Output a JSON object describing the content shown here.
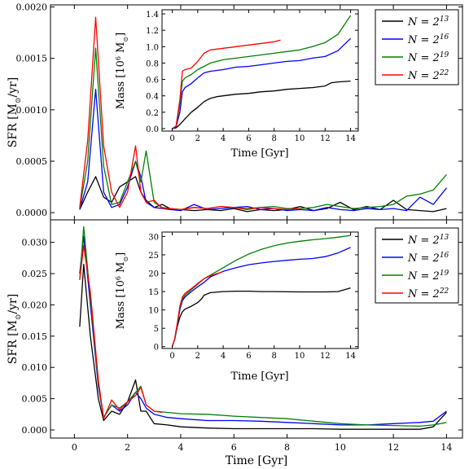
{
  "figure": {
    "x_label": "Time [Gyr]",
    "legend_labels": [
      "N = 2^13",
      "N = 2^16",
      "N = 2^19",
      "N = 2^22"
    ],
    "colors": [
      "#000000",
      "#0000ff",
      "#008000",
      "#ff0000"
    ]
  },
  "chart_data": [
    {
      "id": "top-main",
      "type": "line",
      "ylabel": "SFR [M_sun/yr]",
      "xlabel": "",
      "xlim": [
        -0.9,
        14.6
      ],
      "ylim": [
        -7e-05,
        0.00202
      ],
      "x_ticks": [
        0,
        2,
        4,
        6,
        8,
        10,
        12,
        14
      ],
      "y_ticks": [
        0.0,
        0.0005,
        0.001,
        0.0015,
        0.002
      ],
      "y_tick_labels": [
        "0.0000",
        "0.0005",
        "0.0010",
        "0.0015",
        "0.0020"
      ],
      "legend_position": "top-right",
      "series": [
        {
          "name": "N = 2^13",
          "color": "#000000",
          "x": [
            0.2,
            0.5,
            0.8,
            1.1,
            1.4,
            1.7,
            2.0,
            2.3,
            2.5,
            2.7,
            3.0,
            3.3,
            3.6,
            4.0,
            4.5,
            5.0,
            5.5,
            6.0,
            6.5,
            7.0,
            7.5,
            8.0,
            8.5,
            9.0,
            9.5,
            10.0,
            10.5,
            11.0,
            11.5,
            12.0,
            12.5,
            13.0,
            13.5,
            14.0
          ],
          "y": [
            3e-05,
            0.0002,
            0.00035,
            0.00015,
            0.0001,
            0.00025,
            0.0003,
            0.00035,
            0.0002,
            0.00012,
            5e-05,
            8e-05,
            4e-05,
            3e-05,
            2e-05,
            3e-05,
            2e-05,
            4e-05,
            1e-05,
            3e-05,
            2e-05,
            3e-05,
            6e-05,
            2e-05,
            4e-05,
            0.0001,
            3e-05,
            6e-05,
            3e-05,
            0.00012,
            3e-05,
            2e-05,
            1e-05,
            4e-05
          ]
        },
        {
          "name": "N = 2^16",
          "color": "#0000ff",
          "x": [
            0.2,
            0.5,
            0.8,
            1.1,
            1.4,
            1.7,
            2.0,
            2.3,
            2.5,
            2.7,
            3.0,
            3.3,
            3.6,
            4.0,
            4.5,
            5.0,
            5.5,
            6.0,
            6.5,
            7.0,
            7.5,
            8.0,
            8.5,
            9.0,
            9.5,
            10.0,
            10.5,
            11.0,
            11.5,
            12.0,
            12.5,
            13.0,
            13.5,
            14.0
          ],
          "y": [
            3e-05,
            0.0003,
            0.0012,
            0.0002,
            5e-05,
            8e-05,
            0.00025,
            0.0005,
            0.00035,
            0.0001,
            5e-05,
            4e-05,
            3e-05,
            2e-05,
            8e-05,
            3e-05,
            4e-05,
            5e-05,
            6e-05,
            3e-05,
            4e-05,
            2e-05,
            3e-05,
            2e-05,
            5e-05,
            3e-05,
            2e-05,
            4e-05,
            3e-05,
            4e-05,
            2e-05,
            0.00015,
            8e-05,
            0.00024
          ]
        },
        {
          "name": "N = 2^19",
          "color": "#008000",
          "x": [
            0.2,
            0.5,
            0.8,
            1.1,
            1.4,
            1.7,
            2.0,
            2.3,
            2.5,
            2.7,
            3.0,
            3.3,
            3.6,
            4.0,
            4.5,
            5.0,
            5.5,
            6.0,
            6.5,
            7.0,
            7.5,
            8.0,
            8.5,
            9.0,
            9.5,
            10.0,
            10.5,
            11.0,
            11.5,
            12.0,
            12.5,
            13.0,
            13.5,
            14.0
          ],
          "y": [
            4e-05,
            0.0005,
            0.0016,
            0.00045,
            8e-05,
            0.0001,
            0.0003,
            0.0005,
            0.0003,
            0.0006,
            0.0001,
            5e-05,
            4e-05,
            3e-05,
            5e-05,
            4e-05,
            6e-05,
            5e-05,
            4e-05,
            5e-05,
            6e-05,
            4e-05,
            4e-05,
            5e-05,
            8e-05,
            6e-05,
            4e-05,
            5e-05,
            6e-05,
            8e-05,
            0.00016,
            0.00018,
            0.00022,
            0.00037
          ]
        },
        {
          "name": "N = 2^22",
          "color": "#ff0000",
          "x": [
            0.2,
            0.5,
            0.8,
            1.1,
            1.4,
            1.7,
            2.0,
            2.3,
            2.5,
            2.7,
            3.0,
            3.3,
            3.6,
            4.0,
            4.5,
            5.0,
            5.5,
            6.0,
            6.5,
            7.0,
            7.5,
            8.0,
            8.5
          ],
          "y": [
            5e-05,
            0.0007,
            0.0019,
            0.00065,
            0.0002,
            5e-05,
            0.0002,
            0.00065,
            0.0002,
            0.0001,
            0.00012,
            4e-05,
            4e-05,
            3e-05,
            5e-05,
            4e-05,
            6e-05,
            5e-05,
            3e-05,
            5e-05,
            4e-05,
            3e-05,
            4e-05
          ]
        }
      ]
    },
    {
      "id": "top-inset",
      "type": "line",
      "ylabel": "Mass [10^6 M_sun]",
      "xlabel": "Time [Gyr]",
      "xlim": [
        -0.8,
        14.6
      ],
      "ylim": [
        -0.03,
        1.45
      ],
      "x_ticks": [
        0,
        2,
        4,
        6,
        8,
        10,
        12,
        14
      ],
      "y_ticks": [
        0.0,
        0.2,
        0.4,
        0.6,
        0.8,
        1.0,
        1.2,
        1.4
      ],
      "y_tick_labels": [
        "0.0",
        "0.2",
        "0.4",
        "0.6",
        "0.8",
        "1.0",
        "1.2",
        "1.4"
      ],
      "series": [
        {
          "name": "N = 2^13",
          "color": "#000000",
          "x": [
            0.0,
            0.3,
            0.6,
            1.0,
            1.5,
            2.0,
            2.5,
            3.0,
            3.5,
            4.0,
            5.0,
            6.0,
            7.0,
            8.0,
            9.0,
            10.0,
            11.0,
            12.0,
            12.5,
            13.0,
            14.0
          ],
          "y": [
            0.0,
            0.01,
            0.05,
            0.12,
            0.2,
            0.26,
            0.33,
            0.37,
            0.39,
            0.4,
            0.42,
            0.43,
            0.45,
            0.46,
            0.48,
            0.49,
            0.5,
            0.52,
            0.56,
            0.57,
            0.58
          ]
        },
        {
          "name": "N = 2^16",
          "color": "#0000ff",
          "x": [
            0.0,
            0.3,
            0.6,
            0.8,
            1.0,
            1.5,
            2.0,
            2.5,
            3.0,
            4.0,
            5.0,
            6.0,
            7.0,
            8.0,
            9.0,
            10.0,
            11.0,
            12.0,
            13.0,
            14.0
          ],
          "y": [
            0.0,
            0.02,
            0.2,
            0.45,
            0.5,
            0.55,
            0.62,
            0.68,
            0.7,
            0.72,
            0.75,
            0.76,
            0.78,
            0.8,
            0.82,
            0.83,
            0.86,
            0.88,
            0.95,
            1.1
          ]
        },
        {
          "name": "N = 2^19",
          "color": "#008000",
          "x": [
            0.0,
            0.3,
            0.6,
            0.8,
            1.0,
            1.5,
            2.0,
            2.5,
            3.0,
            4.0,
            5.0,
            6.0,
            7.0,
            8.0,
            9.0,
            10.0,
            11.0,
            12.0,
            13.0,
            14.0
          ],
          "y": [
            0.0,
            0.03,
            0.3,
            0.58,
            0.62,
            0.66,
            0.72,
            0.76,
            0.8,
            0.84,
            0.86,
            0.88,
            0.9,
            0.92,
            0.94,
            0.96,
            1.0,
            1.05,
            1.15,
            1.38
          ]
        },
        {
          "name": "N = 2^22",
          "color": "#ff0000",
          "x": [
            0.0,
            0.3,
            0.6,
            0.8,
            1.0,
            1.5,
            2.0,
            2.5,
            3.0,
            4.0,
            5.0,
            6.0,
            7.0,
            8.0,
            8.5
          ],
          "y": [
            0.0,
            0.03,
            0.35,
            0.7,
            0.72,
            0.74,
            0.82,
            0.92,
            0.96,
            0.98,
            1.0,
            1.02,
            1.04,
            1.06,
            1.08
          ]
        }
      ]
    },
    {
      "id": "bottom-main",
      "type": "line",
      "ylabel": "SFR [M_sun/yr]",
      "xlabel": "Time [Gyr]",
      "xlim": [
        -0.9,
        14.6
      ],
      "ylim": [
        -0.0013,
        0.0336
      ],
      "x_ticks": [
        0,
        2,
        4,
        6,
        8,
        10,
        12,
        14
      ],
      "y_ticks": [
        0.0,
        0.005,
        0.01,
        0.015,
        0.02,
        0.025,
        0.03
      ],
      "y_tick_labels": [
        "0.000",
        "0.005",
        "0.010",
        "0.015",
        "0.020",
        "0.025",
        "0.030"
      ],
      "legend_position": "top-right",
      "series": [
        {
          "name": "N = 2^13",
          "color": "#000000",
          "x": [
            0.2,
            0.35,
            0.6,
            0.9,
            1.1,
            1.4,
            1.7,
            2.0,
            2.3,
            2.5,
            2.7,
            3.0,
            3.5,
            4.0,
            5.0,
            6.0,
            7.0,
            8.0,
            9.0,
            10.0,
            11.0,
            12.0,
            13.0,
            13.5,
            14.0
          ],
          "y": [
            0.0165,
            0.0265,
            0.015,
            0.005,
            0.0015,
            0.003,
            0.0025,
            0.0045,
            0.008,
            0.003,
            0.003,
            0.001,
            0.0008,
            0.0005,
            0.0003,
            0.0002,
            0.0002,
            0.0002,
            0.0002,
            0.0001,
            0.0001,
            0.0001,
            0.0001,
            0.0005,
            0.0028
          ]
        },
        {
          "name": "N = 2^16",
          "color": "#0000ff",
          "x": [
            0.2,
            0.35,
            0.6,
            0.9,
            1.1,
            1.4,
            1.7,
            2.0,
            2.3,
            2.5,
            2.7,
            3.0,
            3.5,
            4.0,
            5.0,
            6.0,
            7.0,
            8.0,
            9.0,
            10.0,
            11.0,
            12.0,
            13.0,
            13.5,
            14.0
          ],
          "y": [
            0.025,
            0.031,
            0.02,
            0.007,
            0.002,
            0.004,
            0.003,
            0.004,
            0.006,
            0.005,
            0.0035,
            0.0025,
            0.002,
            0.0018,
            0.0015,
            0.0015,
            0.0014,
            0.0012,
            0.001,
            0.0008,
            0.0008,
            0.001,
            0.0012,
            0.0014,
            0.003
          ]
        },
        {
          "name": "N = 2^19",
          "color": "#008000",
          "x": [
            0.2,
            0.35,
            0.6,
            0.9,
            1.1,
            1.4,
            1.7,
            2.0,
            2.3,
            2.5,
            2.7,
            3.0,
            3.5,
            4.0,
            5.0,
            6.0,
            7.0,
            8.0,
            9.0,
            10.0,
            11.0,
            12.0,
            13.0,
            13.5,
            14.0
          ],
          "y": [
            0.024,
            0.0325,
            0.021,
            0.0075,
            0.002,
            0.004,
            0.0035,
            0.0045,
            0.006,
            0.007,
            0.004,
            0.003,
            0.0028,
            0.0026,
            0.0025,
            0.0022,
            0.002,
            0.0018,
            0.0014,
            0.001,
            0.0008,
            0.0007,
            0.0006,
            0.0008,
            0.0012
          ]
        },
        {
          "name": "N = 2^22",
          "color": "#ff0000",
          "x": [
            0.2,
            0.35,
            0.6,
            0.9,
            1.1,
            1.4,
            1.7,
            2.0,
            2.3,
            2.5,
            2.7,
            3.0,
            3.3
          ],
          "y": [
            0.024,
            0.0295,
            0.022,
            0.008,
            0.0018,
            0.0048,
            0.0032,
            0.0045,
            0.0055,
            0.0068,
            0.004,
            0.003,
            0.0028
          ]
        }
      ]
    },
    {
      "id": "bottom-inset",
      "type": "line",
      "ylabel": "Mass [10^6 M_sun]",
      "xlabel": "Time [Gyr]",
      "xlim": [
        -0.8,
        14.6
      ],
      "ylim": [
        -0.5,
        31.2
      ],
      "x_ticks": [
        0,
        2,
        4,
        6,
        8,
        10,
        12,
        14
      ],
      "y_ticks": [
        0,
        5,
        10,
        15,
        20,
        25,
        30
      ],
      "y_tick_labels": [
        "0",
        "5",
        "10",
        "15",
        "20",
        "25",
        "30"
      ],
      "series": [
        {
          "name": "N = 2^13",
          "color": "#000000",
          "x": [
            0.0,
            0.2,
            0.4,
            0.6,
            0.8,
            1.0,
            1.5,
            2.0,
            2.3,
            2.5,
            3.0,
            4.0,
            5.0,
            6.0,
            7.0,
            8.0,
            10.0,
            12.0,
            13.0,
            14.0
          ],
          "y": [
            0.0,
            2.0,
            5.5,
            8.0,
            9.5,
            10.2,
            11.0,
            12.0,
            13.0,
            14.0,
            14.7,
            15.0,
            15.1,
            15.1,
            15.0,
            15.0,
            14.9,
            14.9,
            15.0,
            16.0
          ]
        },
        {
          "name": "N = 2^16",
          "color": "#0000ff",
          "x": [
            0.0,
            0.2,
            0.4,
            0.6,
            0.8,
            1.0,
            1.5,
            2.0,
            2.5,
            3.0,
            4.0,
            5.0,
            6.0,
            7.0,
            8.0,
            9.0,
            10.0,
            11.0,
            12.0,
            13.0,
            14.0
          ],
          "y": [
            0.0,
            2.0,
            6.0,
            10.0,
            12.5,
            13.5,
            15.0,
            16.3,
            17.5,
            19.0,
            20.5,
            21.5,
            22.3,
            22.8,
            23.2,
            23.5,
            23.8,
            24.0,
            24.5,
            25.5,
            27.0
          ]
        },
        {
          "name": "N = 2^19",
          "color": "#008000",
          "x": [
            0.0,
            0.2,
            0.4,
            0.6,
            0.8,
            1.0,
            1.5,
            2.0,
            2.5,
            3.0,
            4.0,
            5.0,
            6.0,
            7.0,
            8.0,
            9.0,
            10.0,
            11.0,
            12.0,
            13.0,
            14.0
          ],
          "y": [
            0.0,
            2.0,
            6.0,
            10.5,
            13.0,
            14.0,
            15.5,
            17.0,
            18.5,
            19.5,
            21.5,
            23.5,
            25.2,
            26.5,
            27.5,
            28.2,
            28.7,
            29.1,
            29.4,
            29.8,
            30.3
          ]
        },
        {
          "name": "N = 2^22",
          "color": "#ff0000",
          "x": [
            0.0,
            0.2,
            0.4,
            0.6,
            0.8,
            1.0,
            1.5,
            2.0,
            2.5,
            3.0,
            3.5,
            3.9
          ],
          "y": [
            0.0,
            2.2,
            6.5,
            11.0,
            13.5,
            14.5,
            15.8,
            17.2,
            18.5,
            19.3,
            19.9,
            20.3
          ]
        }
      ]
    }
  ]
}
